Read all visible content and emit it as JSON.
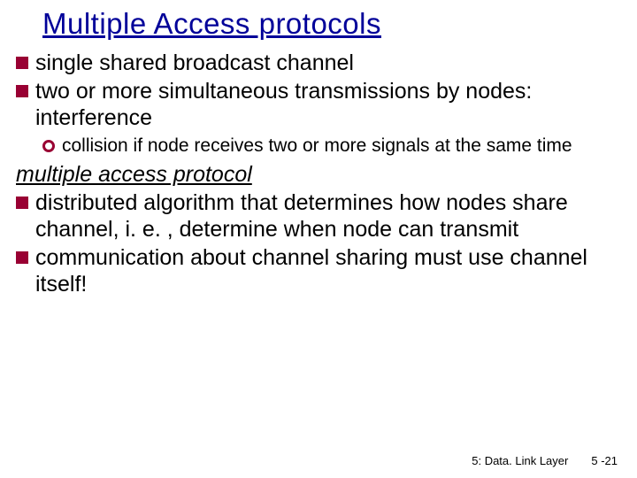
{
  "title": "Multiple Access protocols",
  "colors": {
    "title": "#000099",
    "body": "#000000",
    "bullet": "#990033",
    "background": "#ffffff"
  },
  "typography": {
    "title_fontsize": 33,
    "body_fontsize": 25,
    "sub_fontsize": 21,
    "footer_fontsize": 13,
    "font_family": "Comic Sans MS"
  },
  "bullets_top": [
    "single shared broadcast channel",
    "two or more simultaneous transmissions by nodes: interference"
  ],
  "subbullets": [
    "collision if node receives two or more signals at the same time"
  ],
  "subheading": "multiple access protocol",
  "bullets_bottom": [
    "distributed algorithm that determines how nodes share channel, i. e. , determine when node can transmit",
    "communication about channel sharing must use channel itself!"
  ],
  "footer": {
    "section": "5: Data. Link Layer",
    "page": "5 -21"
  }
}
